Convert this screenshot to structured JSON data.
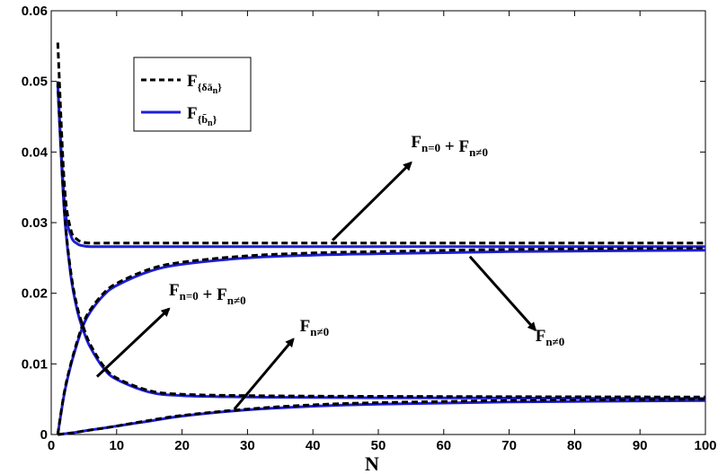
{
  "chart_data": {
    "type": "line",
    "title": "",
    "xlabel": "N",
    "ylabel": "",
    "xlim": [
      0,
      100
    ],
    "ylim": [
      0,
      0.06
    ],
    "x_ticks": [
      "0",
      "10",
      "20",
      "30",
      "40",
      "50",
      "60",
      "70",
      "80",
      "90",
      "100"
    ],
    "y_ticks": [
      "0",
      "0.01",
      "0.02",
      "0.03",
      "0.04",
      "0.05",
      "0.06"
    ],
    "grid": false,
    "legend": {
      "position": "top-left",
      "entries": [
        {
          "label": "F{δā_n}",
          "style": "dashed",
          "color": "#000000"
        },
        {
          "label": "F{b̄_n}",
          "style": "solid",
          "color": "#1f1fd6"
        }
      ]
    },
    "series": [
      {
        "group": "F{δā_n}",
        "color": "#000000",
        "dash": true,
        "x": [
          1,
          2,
          3,
          4,
          5,
          6,
          8,
          10,
          15,
          20,
          30,
          50,
          100
        ],
        "y": [
          0.0555,
          0.0355,
          0.029,
          0.0276,
          0.0272,
          0.0271,
          0.0271,
          0.0271,
          0.0271,
          0.0271,
          0.0271,
          0.0271,
          0.0271
        ]
      },
      {
        "group": "F{δā_n}",
        "color": "#000000",
        "dash": true,
        "x": [
          1,
          2,
          3,
          4,
          5,
          6,
          8,
          10,
          15,
          20,
          30,
          50,
          100
        ],
        "y": [
          0.05,
          0.032,
          0.023,
          0.018,
          0.015,
          0.0127,
          0.0097,
          0.008,
          0.0062,
          0.0057,
          0.0055,
          0.0054,
          0.0053
        ]
      },
      {
        "group": "F{δā_n}",
        "color": "#000000",
        "dash": true,
        "x": [
          1,
          2,
          3,
          4,
          5,
          6,
          8,
          10,
          15,
          20,
          30,
          40,
          50,
          70,
          100
        ],
        "y": [
          0.0,
          0.006,
          0.01,
          0.0133,
          0.016,
          0.0177,
          0.02,
          0.0214,
          0.0234,
          0.0244,
          0.0253,
          0.0257,
          0.0259,
          0.0262,
          0.0264
        ]
      },
      {
        "group": "F{δā_n}",
        "color": "#000000",
        "dash": true,
        "x": [
          1,
          3,
          5,
          8,
          10,
          15,
          20,
          30,
          40,
          50,
          70,
          100
        ],
        "y": [
          0.0,
          0.0002,
          0.0005,
          0.0009,
          0.0012,
          0.002,
          0.0027,
          0.0036,
          0.0042,
          0.0045,
          0.0048,
          0.005
        ]
      },
      {
        "group": "F{b̄_n}",
        "color": "#1f1fd6",
        "dash": false,
        "x": [
          1,
          2,
          3,
          4,
          5,
          6,
          8,
          10,
          15,
          20,
          30,
          50,
          100
        ],
        "y": [
          0.0495,
          0.033,
          0.0282,
          0.027,
          0.0267,
          0.0266,
          0.0266,
          0.0266,
          0.0266,
          0.0266,
          0.0266,
          0.0266,
          0.0266
        ]
      },
      {
        "group": "F{b̄_n}",
        "color": "#1f1fd6",
        "dash": false,
        "x": [
          1,
          2,
          3,
          4,
          5,
          6,
          8,
          10,
          15,
          20,
          30,
          50,
          100
        ],
        "y": [
          0.0495,
          0.0315,
          0.0225,
          0.0175,
          0.0145,
          0.0123,
          0.0094,
          0.0078,
          0.006,
          0.0055,
          0.0053,
          0.0052,
          0.0051
        ]
      },
      {
        "group": "F{b̄_n}",
        "color": "#1f1fd6",
        "dash": false,
        "x": [
          1,
          2,
          3,
          4,
          5,
          6,
          8,
          10,
          15,
          20,
          30,
          40,
          50,
          70,
          100
        ],
        "y": [
          0.0,
          0.0058,
          0.0098,
          0.013,
          0.0157,
          0.0174,
          0.0197,
          0.0211,
          0.0231,
          0.0241,
          0.025,
          0.0254,
          0.0256,
          0.0259,
          0.0261
        ]
      },
      {
        "group": "F{b̄_n}",
        "color": "#1f1fd6",
        "dash": false,
        "x": [
          1,
          3,
          5,
          8,
          10,
          15,
          20,
          30,
          40,
          50,
          70,
          100
        ],
        "y": [
          0.0,
          0.0002,
          0.0005,
          0.0009,
          0.0012,
          0.0019,
          0.0026,
          0.0035,
          0.004,
          0.0043,
          0.0046,
          0.0048
        ]
      }
    ],
    "annotations": [
      {
        "text": "F_{n=0} + F_{n≠0}",
        "x": 55,
        "y": 0.0407,
        "arrow_from": [
          43,
          0.0275
        ],
        "arrow_to": [
          55,
          0.0385
        ]
      },
      {
        "text": "F_{n=0} + F_{n≠0}",
        "x": 18,
        "y": 0.0197,
        "arrow_from": [
          7,
          0.0082
        ],
        "arrow_to": [
          18,
          0.0178
        ]
      },
      {
        "text": "F_{n≠0}",
        "x": 38,
        "y": 0.0146,
        "arrow_from": [
          28,
          0.0036
        ],
        "arrow_to": [
          37,
          0.0135
        ]
      },
      {
        "text": "F_{n≠0}",
        "x": 74,
        "y": 0.0132,
        "arrow_from": [
          64,
          0.0252
        ],
        "arrow_to": [
          74,
          0.0148
        ]
      }
    ]
  }
}
